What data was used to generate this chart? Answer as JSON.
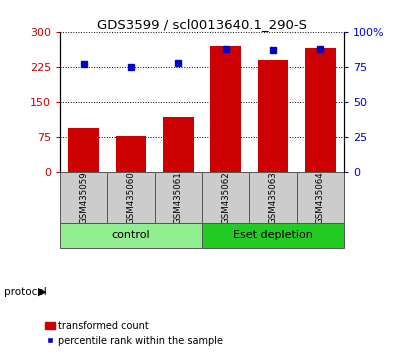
{
  "title": "GDS3599 / scl0013640.1_290-S",
  "samples": [
    "GSM435059",
    "GSM435060",
    "GSM435061",
    "GSM435062",
    "GSM435063",
    "GSM435064"
  ],
  "transformed_counts": [
    95,
    78,
    118,
    270,
    240,
    265
  ],
  "percentile_ranks": [
    77,
    75,
    78,
    88,
    87,
    88
  ],
  "left_ylim": [
    0,
    300
  ],
  "right_ylim": [
    0,
    100
  ],
  "left_yticks": [
    0,
    75,
    150,
    225,
    300
  ],
  "right_yticks": [
    0,
    25,
    50,
    75,
    100
  ],
  "right_yticklabels": [
    "0",
    "25",
    "50",
    "75",
    "100%"
  ],
  "bar_color": "#cc0000",
  "dot_color": "#0000cc",
  "groups": [
    {
      "label": "control",
      "start": 0,
      "end": 2,
      "color": "#90ee90"
    },
    {
      "label": "Eset depletion",
      "start": 3,
      "end": 5,
      "color": "#22cc22"
    }
  ],
  "protocol_label": "protocol",
  "legend_bar_label": "transformed count",
  "legend_dot_label": "percentile rank within the sample",
  "plot_bg": "#ffffff",
  "sample_bg": "#cccccc",
  "left_tick_color": "#cc0000",
  "right_tick_color": "#0000cc"
}
